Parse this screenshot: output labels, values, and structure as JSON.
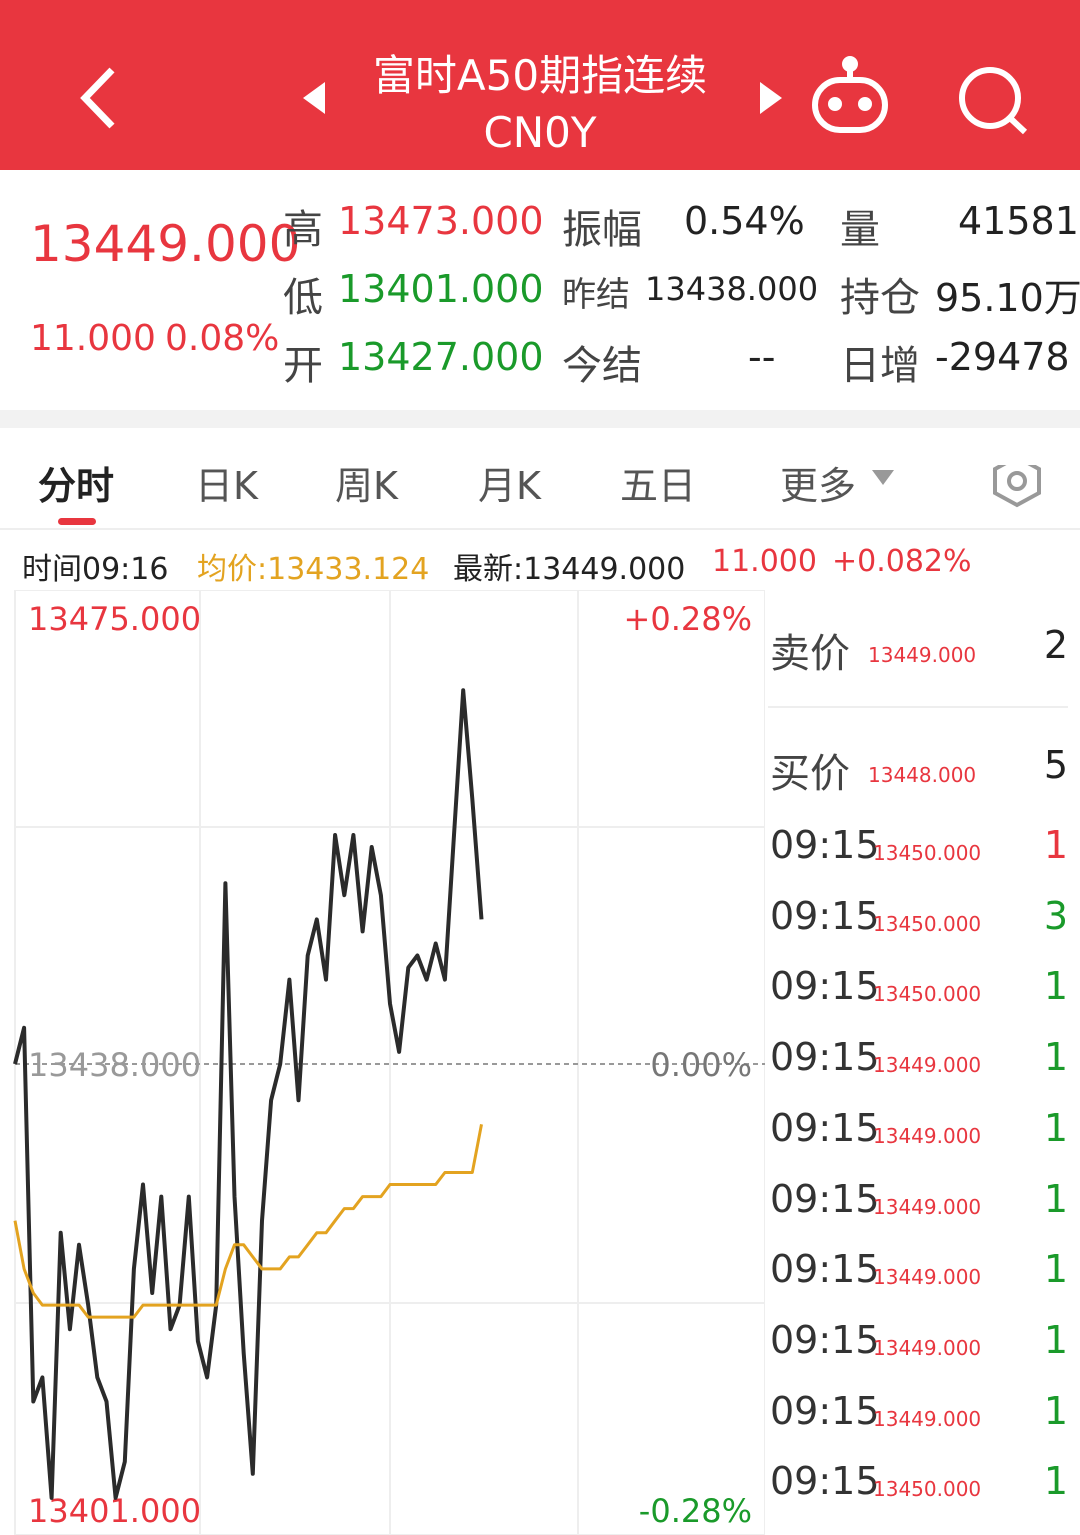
{
  "header": {
    "title": "富时A50期指连续",
    "subtitle": "CN0Y"
  },
  "quote": {
    "price": "13449.000",
    "change": "11.000",
    "change_pct": "0.08%",
    "stats": [
      {
        "label": "高",
        "value": "13473.000"
      },
      {
        "label": "低",
        "value": "13401.000"
      },
      {
        "label": "开",
        "value": "13427.000"
      },
      {
        "label": "振幅",
        "value": "0.54%"
      },
      {
        "label": "昨结",
        "value": "13438.000"
      },
      {
        "label": "今结",
        "value": "--"
      },
      {
        "label": "量",
        "value": "41581"
      },
      {
        "label": "持仓",
        "value": "95.10万"
      },
      {
        "label": "日增",
        "value": "-29478"
      }
    ]
  },
  "tabs": [
    "分时",
    "日K",
    "周K",
    "月K",
    "五日",
    "更多"
  ],
  "info": {
    "time": "时间09:16",
    "avg": "均价:13433.124",
    "last": "最新:13449.000",
    "change": "11.000",
    "change_pct": "+0.082%"
  },
  "chart_data": {
    "type": "line",
    "categories": [
      null,
      null,
      null,
      null,
      null,
      null,
      null,
      null,
      null,
      null,
      null,
      null,
      null,
      null,
      null,
      null,
      null,
      null,
      null,
      null,
      null,
      null,
      null,
      null,
      null,
      null,
      null,
      null,
      null,
      null,
      null,
      null,
      null,
      null,
      null,
      null,
      null,
      null,
      null,
      null,
      null,
      null,
      null,
      null,
      null,
      null,
      null,
      null,
      null,
      null,
      null,
      null,
      null,
      null,
      null,
      null,
      null,
      null,
      null,
      null,
      null,
      null,
      null,
      null,
      null,
      null,
      null,
      null,
      null,
      null,
      null,
      null,
      null,
      null,
      null,
      null,
      null,
      null,
      null,
      null,
      null,
      null,
      null
    ],
    "series": [
      {
        "name": "最新",
        "color": "#2b2b2b",
        "values": [
          13438,
          13441,
          13410,
          13412,
          13402,
          13424,
          13416,
          13423,
          13418,
          13412,
          13410,
          13402,
          13405,
          13421,
          13428,
          13419,
          13427,
          13416,
          13418,
          13427,
          13415,
          13412,
          13418,
          13453,
          13427,
          13414,
          13404,
          13425,
          13435,
          13438,
          13445,
          13435,
          13447,
          13450,
          13445,
          13457,
          13452,
          13457,
          13449,
          13456,
          13452,
          13443,
          13439,
          13446,
          13447,
          13445,
          13448,
          13445,
          13457,
          13469,
          13460,
          13450,
          null,
          null,
          null,
          null,
          null,
          null,
          null,
          null,
          null,
          null,
          null,
          null,
          null,
          null,
          null,
          null,
          null,
          null,
          null,
          null,
          null,
          null,
          null,
          null,
          null,
          null,
          null,
          null,
          null,
          null,
          null
        ]
      },
      {
        "name": "均价",
        "color": "#e3a320",
        "values": [
          13425,
          13421,
          13419,
          13418,
          13418,
          13418,
          13418,
          13418,
          13417,
          13417,
          13417,
          13417,
          13417,
          13417,
          13418,
          13418,
          13418,
          13418,
          13418,
          13418,
          13418,
          13418,
          13418,
          13421,
          13423,
          13423,
          13422,
          13421,
          13421,
          13421,
          13422,
          13422,
          13423,
          13424,
          13424,
          13425,
          13426,
          13426,
          13427,
          13427,
          13427,
          13428,
          13428,
          13428,
          13428,
          13428,
          13428,
          13429,
          13429,
          13429,
          13429,
          13433,
          null,
          null,
          null,
          null,
          null,
          null,
          null,
          null,
          null,
          null,
          null,
          null,
          null,
          null,
          null,
          null,
          null,
          null,
          null,
          null,
          null,
          null,
          null,
          null,
          null,
          null,
          null,
          null,
          null,
          null,
          null
        ]
      }
    ],
    "ylim": [
      13401,
      13475
    ],
    "yticks": [
      {
        "value": 13475,
        "label": "13475.000"
      },
      {
        "value": 13438,
        "label": "13438.000"
      },
      {
        "value": 13401,
        "label": "13401.000"
      }
    ],
    "y2lim": [
      -0.28,
      0.28
    ],
    "y2ticks": [
      {
        "value": 0.28,
        "label": "+0.28%"
      },
      {
        "value": 0,
        "label": "0.00%"
      },
      {
        "value": -0.28,
        "label": "-0.28%"
      }
    ]
  },
  "order_book": {
    "quotes": [
      {
        "label": "卖价",
        "price": "13449.000",
        "qty": "2"
      },
      {
        "label": "买价",
        "price": "13448.000",
        "qty": "5"
      }
    ],
    "trades": [
      {
        "time": "09:15",
        "price": "13450.000",
        "qty": "1",
        "color": "#e8363f"
      },
      {
        "time": "09:15",
        "price": "13450.000",
        "qty": "3",
        "color": "#1a9a2a"
      },
      {
        "time": "09:15",
        "price": "13450.000",
        "qty": "1",
        "color": "#1a9a2a"
      },
      {
        "time": "09:15",
        "price": "13449.000",
        "qty": "1",
        "color": "#1a9a2a"
      },
      {
        "time": "09:15",
        "price": "13449.000",
        "qty": "1",
        "color": "#1a9a2a"
      },
      {
        "time": "09:15",
        "price": "13449.000",
        "qty": "1",
        "color": "#1a9a2a"
      },
      {
        "time": "09:15",
        "price": "13449.000",
        "qty": "1",
        "color": "#1a9a2a"
      },
      {
        "time": "09:15",
        "price": "13449.000",
        "qty": "1",
        "color": "#1a9a2a"
      },
      {
        "time": "09:15",
        "price": "13449.000",
        "qty": "1",
        "color": "#1a9a2a"
      },
      {
        "time": "09:15",
        "price": "13450.000",
        "qty": "1",
        "color": "#1a9a2a"
      }
    ]
  }
}
